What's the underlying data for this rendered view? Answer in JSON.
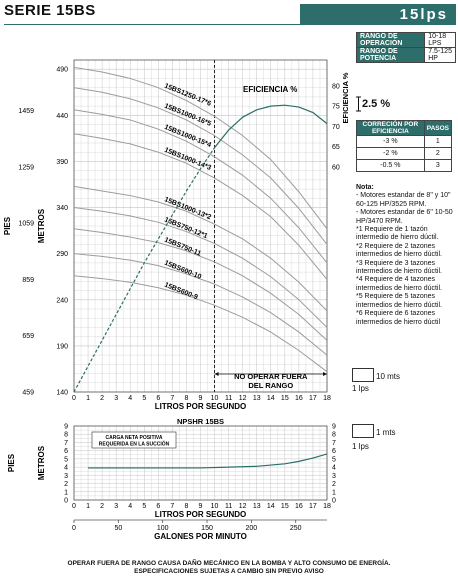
{
  "header": {
    "series": "SERIE 15BS",
    "flow_badge": "15lps"
  },
  "spec_table": [
    {
      "label": "RANGO DE OPERACIÓN",
      "value": "10-18 LPS"
    },
    {
      "label": "RANGO DE POTENCIA",
      "value": "7.5-125 HP"
    }
  ],
  "correction": {
    "value": "2.5 %",
    "headers": [
      "CORRECIÓN POR EFICIENCIA",
      "PASOS"
    ],
    "rows": [
      [
        "-3 %",
        "1"
      ],
      [
        "-2 %",
        "2"
      ],
      [
        "-0.5 %",
        "3"
      ]
    ]
  },
  "notes": {
    "title": "Nota:",
    "lines": [
      "- Motores estandar de 8\" y 10\" 60-125 HP/3525 RPM.",
      "- Motores estandar de 6\" 10-50 HP/3470 RPM.",
      "*1 Requiere de 1 tazón intermedio de hierro dúctil.",
      "*2 Requiere de 2 tazones intermedios de hierro dúctil.",
      "*3 Requiere de 3 tazones intermedios de hierro dúctil.",
      "*4 Requiere de 4 tazones intermedios de hierro dúctil.",
      "*5 Requiere de 5 tazones intermedios de hierro dúctil.",
      "*6 Requiere de 6 tazones intermedios de hierro dúctil"
    ]
  },
  "legend": [
    {
      "value": "10 mts",
      "unit": "1 lps"
    },
    {
      "value": "1 mts",
      "unit": "1 lps"
    }
  ],
  "footer": {
    "line1": "OPERAR FUERA DE RANGO CAUSA DAÑO MECÁNICO EN LA BOMBA Y ALTO CONSUMO DE ENERGÍA.",
    "line2": "ESPECIFICACIONES SUJETAS A CAMBIO SIN PREVIO AVISO"
  },
  "colors": {
    "accent": "#2d6e6a",
    "curve": "#9c9c9c",
    "grid": "#c4c4c4"
  },
  "chart_data": [
    {
      "type": "line",
      "xlabel": "LITROS POR SEGUNDO",
      "ylabel_left_outer": "PIES",
      "ylabel_left_inner": "METROS",
      "ylabel_right": "EFICIENCIA %",
      "xlim": [
        0,
        18
      ],
      "ylim": [
        140,
        500
      ],
      "x_ticks": [
        0,
        1,
        2,
        3,
        4,
        5,
        6,
        7,
        8,
        9,
        10,
        11,
        12,
        13,
        14,
        15,
        16,
        17,
        18
      ],
      "y_ticks": [
        140,
        190,
        240,
        290,
        340,
        390,
        440,
        490
      ],
      "feet_ticks": [
        {
          "label": "459",
          "meters": 140
        },
        {
          "label": "659",
          "meters": 201
        },
        {
          "label": "859",
          "meters": 262
        },
        {
          "label": "1059",
          "meters": 323
        },
        {
          "label": "1259",
          "meters": 384
        },
        {
          "label": "1459",
          "meters": 445
        }
      ],
      "efficiency_ticks": [
        {
          "label": "60",
          "meters": 384
        },
        {
          "label": "65",
          "meters": 406
        },
        {
          "label": "70",
          "meters": 428
        },
        {
          "label": "75",
          "meters": 450
        },
        {
          "label": "80",
          "meters": 472
        }
      ],
      "no_operate_x": 10,
      "no_operate_label": [
        "NO OPERAR FUERA",
        "DEL RANGO"
      ],
      "efficiency_label": "EFICIENCIA %",
      "series": [
        {
          "name": "15BS1250-17*6",
          "x": [
            0,
            2,
            4,
            6,
            8,
            10,
            12,
            14,
            16,
            18
          ],
          "y": [
            492,
            487,
            480,
            470,
            456,
            439,
            418,
            392,
            357,
            317
          ]
        },
        {
          "name": "15BS1000-16*5",
          "x": [
            0,
            2,
            4,
            6,
            8,
            10,
            12,
            14,
            16,
            18
          ],
          "y": [
            470,
            465,
            458,
            448,
            435,
            418,
            397,
            372,
            339,
            300
          ]
        },
        {
          "name": "15BS1000-15*4",
          "x": [
            0,
            2,
            4,
            6,
            8,
            10,
            12,
            14,
            16,
            18
          ],
          "y": [
            446,
            441,
            435,
            425,
            412,
            395,
            375,
            350,
            318,
            280
          ]
        },
        {
          "name": "15BS1000-14*3",
          "x": [
            0,
            2,
            4,
            6,
            8,
            10,
            12,
            14,
            16,
            18
          ],
          "y": [
            420,
            415,
            409,
            400,
            388,
            372,
            353,
            330,
            299,
            262
          ]
        },
        {
          "name": "15BS1000-13*2",
          "x": [
            0,
            2,
            4,
            6,
            8,
            10,
            12,
            14,
            16,
            18
          ],
          "y": [
            363,
            358,
            353,
            346,
            336,
            322,
            306,
            285,
            259,
            228
          ]
        },
        {
          "name": "15BS750-12*1",
          "x": [
            0,
            2,
            4,
            6,
            8,
            10,
            12,
            14,
            16,
            18
          ],
          "y": [
            340,
            336,
            331,
            324,
            314,
            301,
            285,
            265,
            240,
            210
          ]
        },
        {
          "name": "15BS750-11",
          "x": [
            0,
            2,
            4,
            6,
            8,
            10,
            12,
            14,
            16,
            18
          ],
          "y": [
            317,
            313,
            308,
            302,
            293,
            281,
            266,
            247,
            224,
            196
          ]
        },
        {
          "name": "15BS600-10",
          "x": [
            0,
            2,
            4,
            6,
            8,
            10,
            12,
            14,
            16,
            18
          ],
          "y": [
            290,
            287,
            283,
            277,
            268,
            257,
            243,
            226,
            205,
            180
          ]
        },
        {
          "name": "15BS600-9",
          "x": [
            0,
            2,
            4,
            6,
            8,
            10,
            12,
            14,
            16,
            18
          ],
          "y": [
            266,
            263,
            259,
            253,
            245,
            234,
            221,
            205,
            185,
            162
          ]
        }
      ],
      "efficiency_series": {
        "x": [
          0,
          1,
          2,
          3,
          4,
          5,
          6,
          7,
          8,
          9,
          10,
          11,
          12,
          13,
          14,
          15,
          16,
          17,
          18
        ],
        "y": [
          140,
          168,
          196,
          224,
          252,
          280,
          306,
          332,
          358,
          382,
          405,
          424,
          438,
          446,
          450,
          451,
          449,
          443,
          431
        ]
      }
    },
    {
      "type": "line",
      "title": "NPSHR 15BS",
      "xlabel": "LITROS POR SEGUNDO",
      "xlabel_secondary": "GALONES POR MINUTO",
      "ylabel_outer": "PIES",
      "ylabel_inner": "METROS",
      "xlim": [
        0,
        18
      ],
      "ylim": [
        0,
        9
      ],
      "x_ticks": [
        0,
        1,
        2,
        3,
        4,
        5,
        6,
        7,
        8,
        9,
        10,
        11,
        12,
        13,
        14,
        15,
        16,
        17,
        18
      ],
      "y_ticks": [
        0,
        1,
        2,
        3,
        4,
        5,
        6,
        7,
        8,
        9
      ],
      "gpm_ticks": [
        0,
        50,
        100,
        150,
        200,
        250
      ],
      "annotation": [
        "CARGA NETA POSITIVA",
        "REQUERIDA EN LA SUCCIÓN"
      ],
      "series": [
        {
          "x": [
            1,
            3,
            5,
            7,
            9,
            11,
            13,
            15,
            16,
            17,
            18
          ],
          "y": [
            3.9,
            3.9,
            3.9,
            3.9,
            3.9,
            4.0,
            4.1,
            4.4,
            4.7,
            5.1,
            5.6
          ]
        }
      ]
    }
  ]
}
